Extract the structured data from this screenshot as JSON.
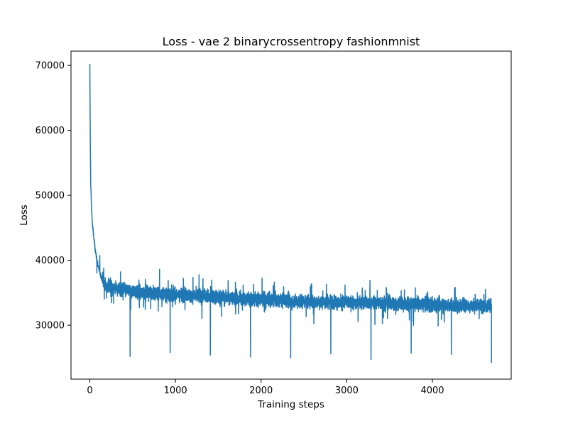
{
  "chart_data": {
    "type": "line",
    "title": "Loss - vae 2 binarycrossentropy fashionmnist",
    "xlabel": "Training steps",
    "ylabel": "Loss",
    "xlim": [
      -220,
      4920
    ],
    "ylim": [
      21700,
      72200
    ],
    "xticks": [
      0,
      1000,
      2000,
      3000,
      4000
    ],
    "xtick_labels": [
      "0",
      "1000",
      "2000",
      "3000",
      "4000"
    ],
    "yticks": [
      30000,
      40000,
      50000,
      60000,
      70000
    ],
    "ytick_labels": [
      "30000",
      "40000",
      "50000",
      "60000",
      "70000"
    ],
    "grid": false,
    "legend": "none",
    "line_color": "#1f77b4",
    "series": [
      {
        "total_steps": 4690,
        "envelope": {
          "x": [
            0,
            5,
            10,
            20,
            30,
            50,
            70,
            100,
            130,
            160,
            200,
            300,
            500,
            800,
            1000,
            1500,
            2000,
            2500,
            3000,
            3500,
            4000,
            4300,
            4500,
            4690
          ],
          "y": [
            70000,
            58500,
            52000,
            48000,
            45500,
            43000,
            41000,
            39000,
            37500,
            36500,
            36000,
            35700,
            35200,
            34900,
            34700,
            34300,
            33900,
            33700,
            33500,
            33400,
            33200,
            33000,
            33100,
            33000
          ]
        },
        "noise_amplitude": 1500,
        "dips": [
          {
            "x": 470,
            "y": 25200
          },
          {
            "x": 938,
            "y": 25800
          },
          {
            "x": 1407,
            "y": 25400
          },
          {
            "x": 1876,
            "y": 25100
          },
          {
            "x": 2345,
            "y": 25000
          },
          {
            "x": 2814,
            "y": 25600
          },
          {
            "x": 3283,
            "y": 24700
          },
          {
            "x": 3752,
            "y": 25700
          },
          {
            "x": 4221,
            "y": 25500
          },
          {
            "x": 4690,
            "y": 24200
          }
        ]
      }
    ]
  }
}
